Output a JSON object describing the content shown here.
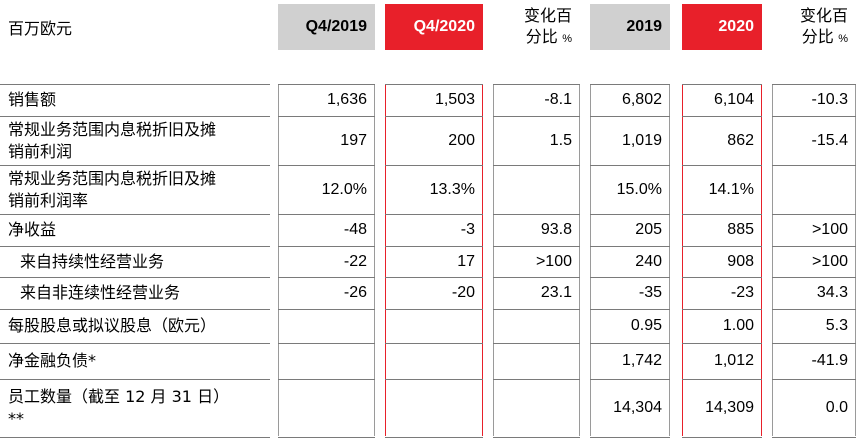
{
  "corner_label": "百万欧元",
  "headers": {
    "q4_2019": "Q4/2019",
    "q4_2020": "Q4/2020",
    "q_change_line1": "变化百",
    "q_change_line2": "分比",
    "q_change_unit": "%",
    "y2019": "2019",
    "y2020": "2020",
    "y_change_line1": "变化百",
    "y_change_line2": "分比",
    "y_change_unit": "%"
  },
  "rows": [
    {
      "label": [
        "销售额"
      ],
      "q4_2019": "1,636",
      "q4_2020": "1,503",
      "q_change": "-8.1",
      "y2019": "6,802",
      "y2020": "6,104",
      "y_change": "-10.3"
    },
    {
      "label": [
        "常规业务范围内息税折旧及摊",
        "销前利润"
      ],
      "q4_2019": "197",
      "q4_2020": "200",
      "q_change": "1.5",
      "y2019": "1,019",
      "y2020": "862",
      "y_change": "-15.4"
    },
    {
      "label": [
        "常规业务范围内息税折旧及摊",
        "销前利润率"
      ],
      "q4_2019": "12.0%",
      "q4_2020": "13.3%",
      "q_change": "",
      "y2019": "15.0%",
      "y2020": "14.1%",
      "y_change": ""
    },
    {
      "label": [
        "净收益"
      ],
      "q4_2019": "-48",
      "q4_2020": "-3",
      "q_change": "93.8",
      "y2019": "205",
      "y2020": "885",
      "y_change": ">100"
    },
    {
      "label": [
        "来自持续性经营业务"
      ],
      "q4_2019": "-22",
      "q4_2020": "17",
      "q_change": ">100",
      "y2019": "240",
      "y2020": "908",
      "y_change": ">100"
    },
    {
      "label": [
        "来自非连续性经营业务"
      ],
      "q4_2019": "-26",
      "q4_2020": "-20",
      "q_change": "23.1",
      "y2019": "-35",
      "y2020": "-23",
      "y_change": "34.3"
    },
    {
      "label": [
        "每股股息或拟议股息（欧元）"
      ],
      "q4_2019": "",
      "q4_2020": "",
      "q_change": "",
      "y2019": "0.95",
      "y2020": "1.00",
      "y_change": "5.3"
    },
    {
      "label": [
        "净金融负债*"
      ],
      "q4_2019": "",
      "q4_2020": "",
      "q_change": "",
      "y2019": "1,742",
      "y2020": "1,012",
      "y_change": "-41.9"
    },
    {
      "label": [
        "员工数量（截至 12 月 31 日）",
        "**"
      ],
      "q4_2019": "",
      "q4_2020": "",
      "q_change": "",
      "y2019": "14,304",
      "y2020": "14,309",
      "y_change": "0.0"
    }
  ],
  "colors": {
    "accent_red": "#e8202a",
    "header_gray": "#d0d0d0"
  }
}
